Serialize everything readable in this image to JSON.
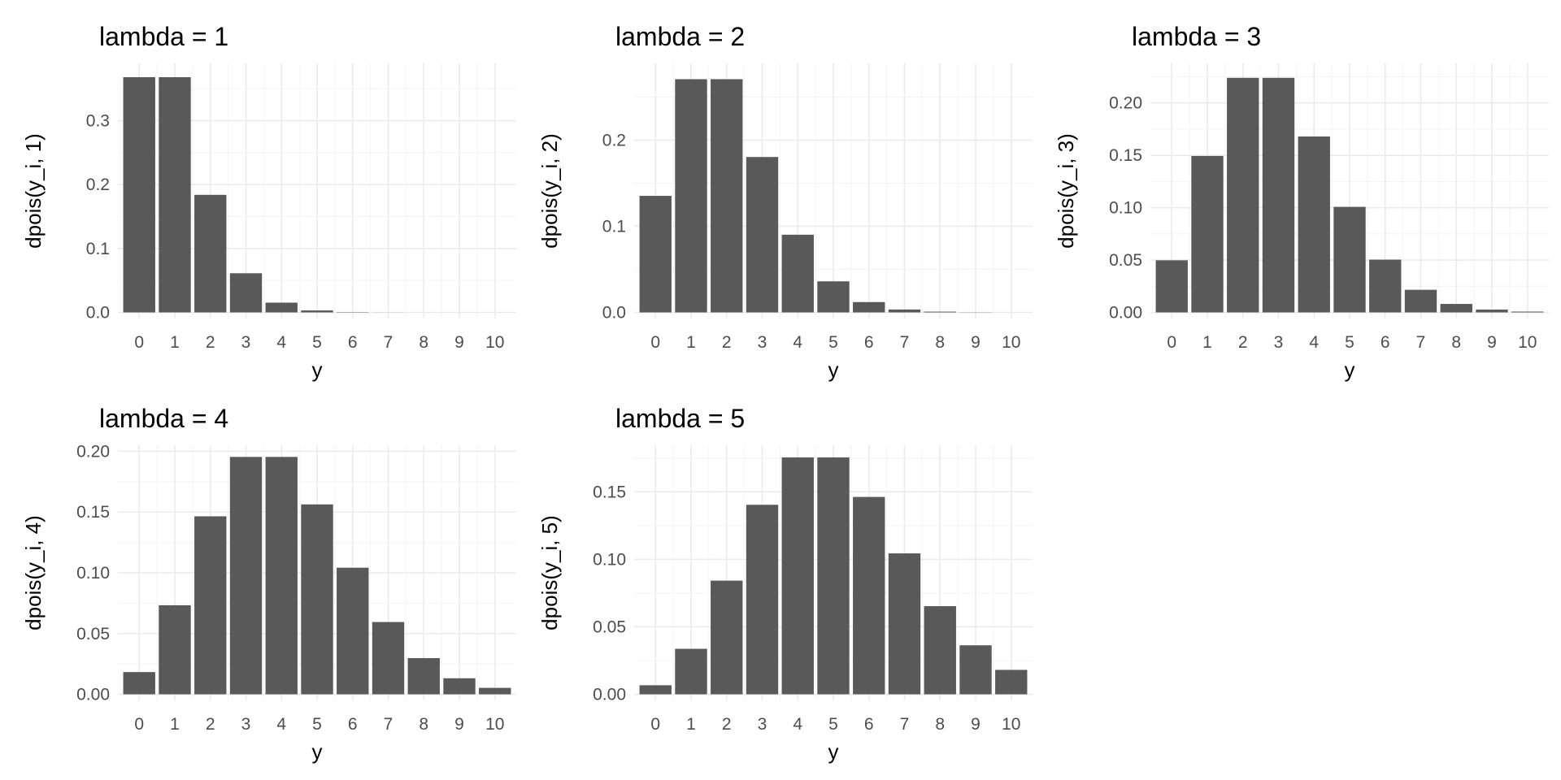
{
  "chart_data": [
    {
      "type": "bar",
      "title": "lambda = 1",
      "xlabel": "y",
      "ylabel": "dpois(y_i, 1)",
      "categories": [
        "0",
        "1",
        "2",
        "3",
        "4",
        "5",
        "6",
        "7",
        "8",
        "9",
        "10"
      ],
      "values": [
        0.3679,
        0.3679,
        0.1839,
        0.0613,
        0.0153,
        0.0031,
        0.0005,
        0.0001,
        0.0,
        0.0,
        0.0
      ],
      "ylim": [
        0,
        0.38
      ],
      "yticks": [
        0.0,
        0.1,
        0.2,
        0.3
      ],
      "ytick_labels": [
        "0.0",
        "0.1",
        "0.2",
        "0.3"
      ],
      "grid": true
    },
    {
      "type": "bar",
      "title": "lambda = 2",
      "xlabel": "y",
      "ylabel": "dpois(y_i, 2)",
      "categories": [
        "0",
        "1",
        "2",
        "3",
        "4",
        "5",
        "6",
        "7",
        "8",
        "9",
        "10"
      ],
      "values": [
        0.1353,
        0.2707,
        0.2707,
        0.1804,
        0.0902,
        0.0361,
        0.012,
        0.0034,
        0.0009,
        0.0002,
        0.0
      ],
      "ylim": [
        0,
        0.282
      ],
      "yticks": [
        0.0,
        0.1,
        0.2
      ],
      "ytick_labels": [
        "0.0",
        "0.1",
        "0.2"
      ],
      "grid": true
    },
    {
      "type": "bar",
      "title": "lambda = 3",
      "xlabel": "y",
      "ylabel": "dpois(y_i, 3)",
      "categories": [
        "0",
        "1",
        "2",
        "3",
        "4",
        "5",
        "6",
        "7",
        "8",
        "9",
        "10"
      ],
      "values": [
        0.0498,
        0.1494,
        0.224,
        0.224,
        0.168,
        0.1008,
        0.0504,
        0.0216,
        0.0081,
        0.0027,
        0.0008
      ],
      "ylim": [
        0,
        0.232
      ],
      "yticks": [
        0.0,
        0.05,
        0.1,
        0.15,
        0.2
      ],
      "ytick_labels": [
        "0.00",
        "0.05",
        "0.10",
        "0.15",
        "0.20"
      ],
      "grid": true
    },
    {
      "type": "bar",
      "title": "lambda = 4",
      "xlabel": "y",
      "ylabel": "dpois(y_i, 4)",
      "categories": [
        "0",
        "1",
        "2",
        "3",
        "4",
        "5",
        "6",
        "7",
        "8",
        "9",
        "10"
      ],
      "values": [
        0.0183,
        0.0733,
        0.1465,
        0.1954,
        0.1954,
        0.1563,
        0.1042,
        0.0595,
        0.0298,
        0.0132,
        0.0053
      ],
      "ylim": [
        0,
        0.2
      ],
      "yticks": [
        0.0,
        0.05,
        0.1,
        0.15,
        0.2
      ],
      "ytick_labels": [
        "0.00",
        "0.05",
        "0.10",
        "0.15",
        "0.20"
      ],
      "grid": true
    },
    {
      "type": "bar",
      "title": "lambda = 5",
      "xlabel": "y",
      "ylabel": "dpois(y_i, 5)",
      "categories": [
        "0",
        "1",
        "2",
        "3",
        "4",
        "5",
        "6",
        "7",
        "8",
        "9",
        "10"
      ],
      "values": [
        0.0067,
        0.0337,
        0.0842,
        0.1404,
        0.1755,
        0.1755,
        0.1462,
        0.1044,
        0.0653,
        0.0363,
        0.0181
      ],
      "ylim": [
        0,
        0.18
      ],
      "yticks": [
        0.0,
        0.05,
        0.1,
        0.15
      ],
      "ytick_labels": [
        "0.00",
        "0.05",
        "0.10",
        "0.15"
      ],
      "grid": true
    }
  ],
  "colors": {
    "bar": "#595959",
    "background": "#ffffff",
    "grid_major": "#ebebeb",
    "grid_minor": "#f4f4f4"
  }
}
